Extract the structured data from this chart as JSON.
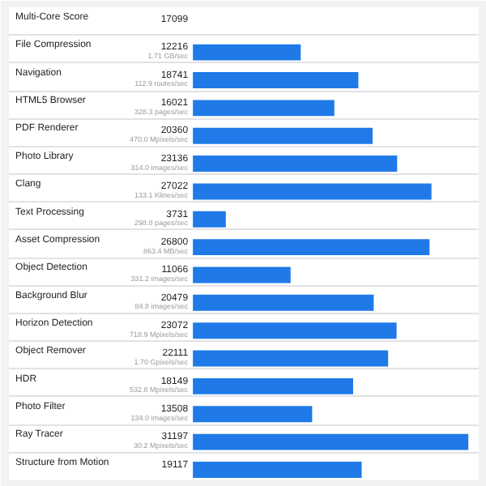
{
  "chart_data": {
    "type": "bar",
    "orientation": "horizontal",
    "categories": [
      "Multi-Core Score",
      "File Compression",
      "Navigation",
      "HTML5 Browser",
      "PDF Renderer",
      "Photo Library",
      "Clang",
      "Text Processing",
      "Asset Compression",
      "Object Detection",
      "Background Blur",
      "Horizon Detection",
      "Object Remover",
      "HDR",
      "Photo Filter",
      "Ray Tracer",
      "Structure from Motion"
    ],
    "values": [
      null,
      12216,
      18741,
      16021,
      20360,
      23136,
      27022,
      3731,
      26800,
      11066,
      20479,
      23072,
      22111,
      18149,
      13508,
      31197,
      19117
    ],
    "value_labels": [
      "17099",
      "12216",
      "18741",
      "16021",
      "20360",
      "23136",
      "27022",
      "3731",
      "26800",
      "11066",
      "20479",
      "23072",
      "22111",
      "18149",
      "13508",
      "31197",
      "19117"
    ],
    "color": "#1f7ae8",
    "xlim": [
      0,
      32000
    ],
    "tick_labels": "y",
    "grid": "y",
    "annotations": [
      "1.71 GB/sec",
      "112.9 routes/sec",
      "328.3 pages/sec",
      "470.0 Mpixels/sec",
      "314.0 images/sec",
      "133.1 Klines/sec",
      "298.8 pages/sec",
      "863.4 MB/sec",
      "331.2 images/sec",
      "84.8 images/sec",
      "718.9 Mpixels/sec",
      "1.70 Gpixels/sec",
      "532.8 Mpixels/sec",
      "134.0 images/sec",
      "30.2 Mpixels/sec"
    ]
  }
}
